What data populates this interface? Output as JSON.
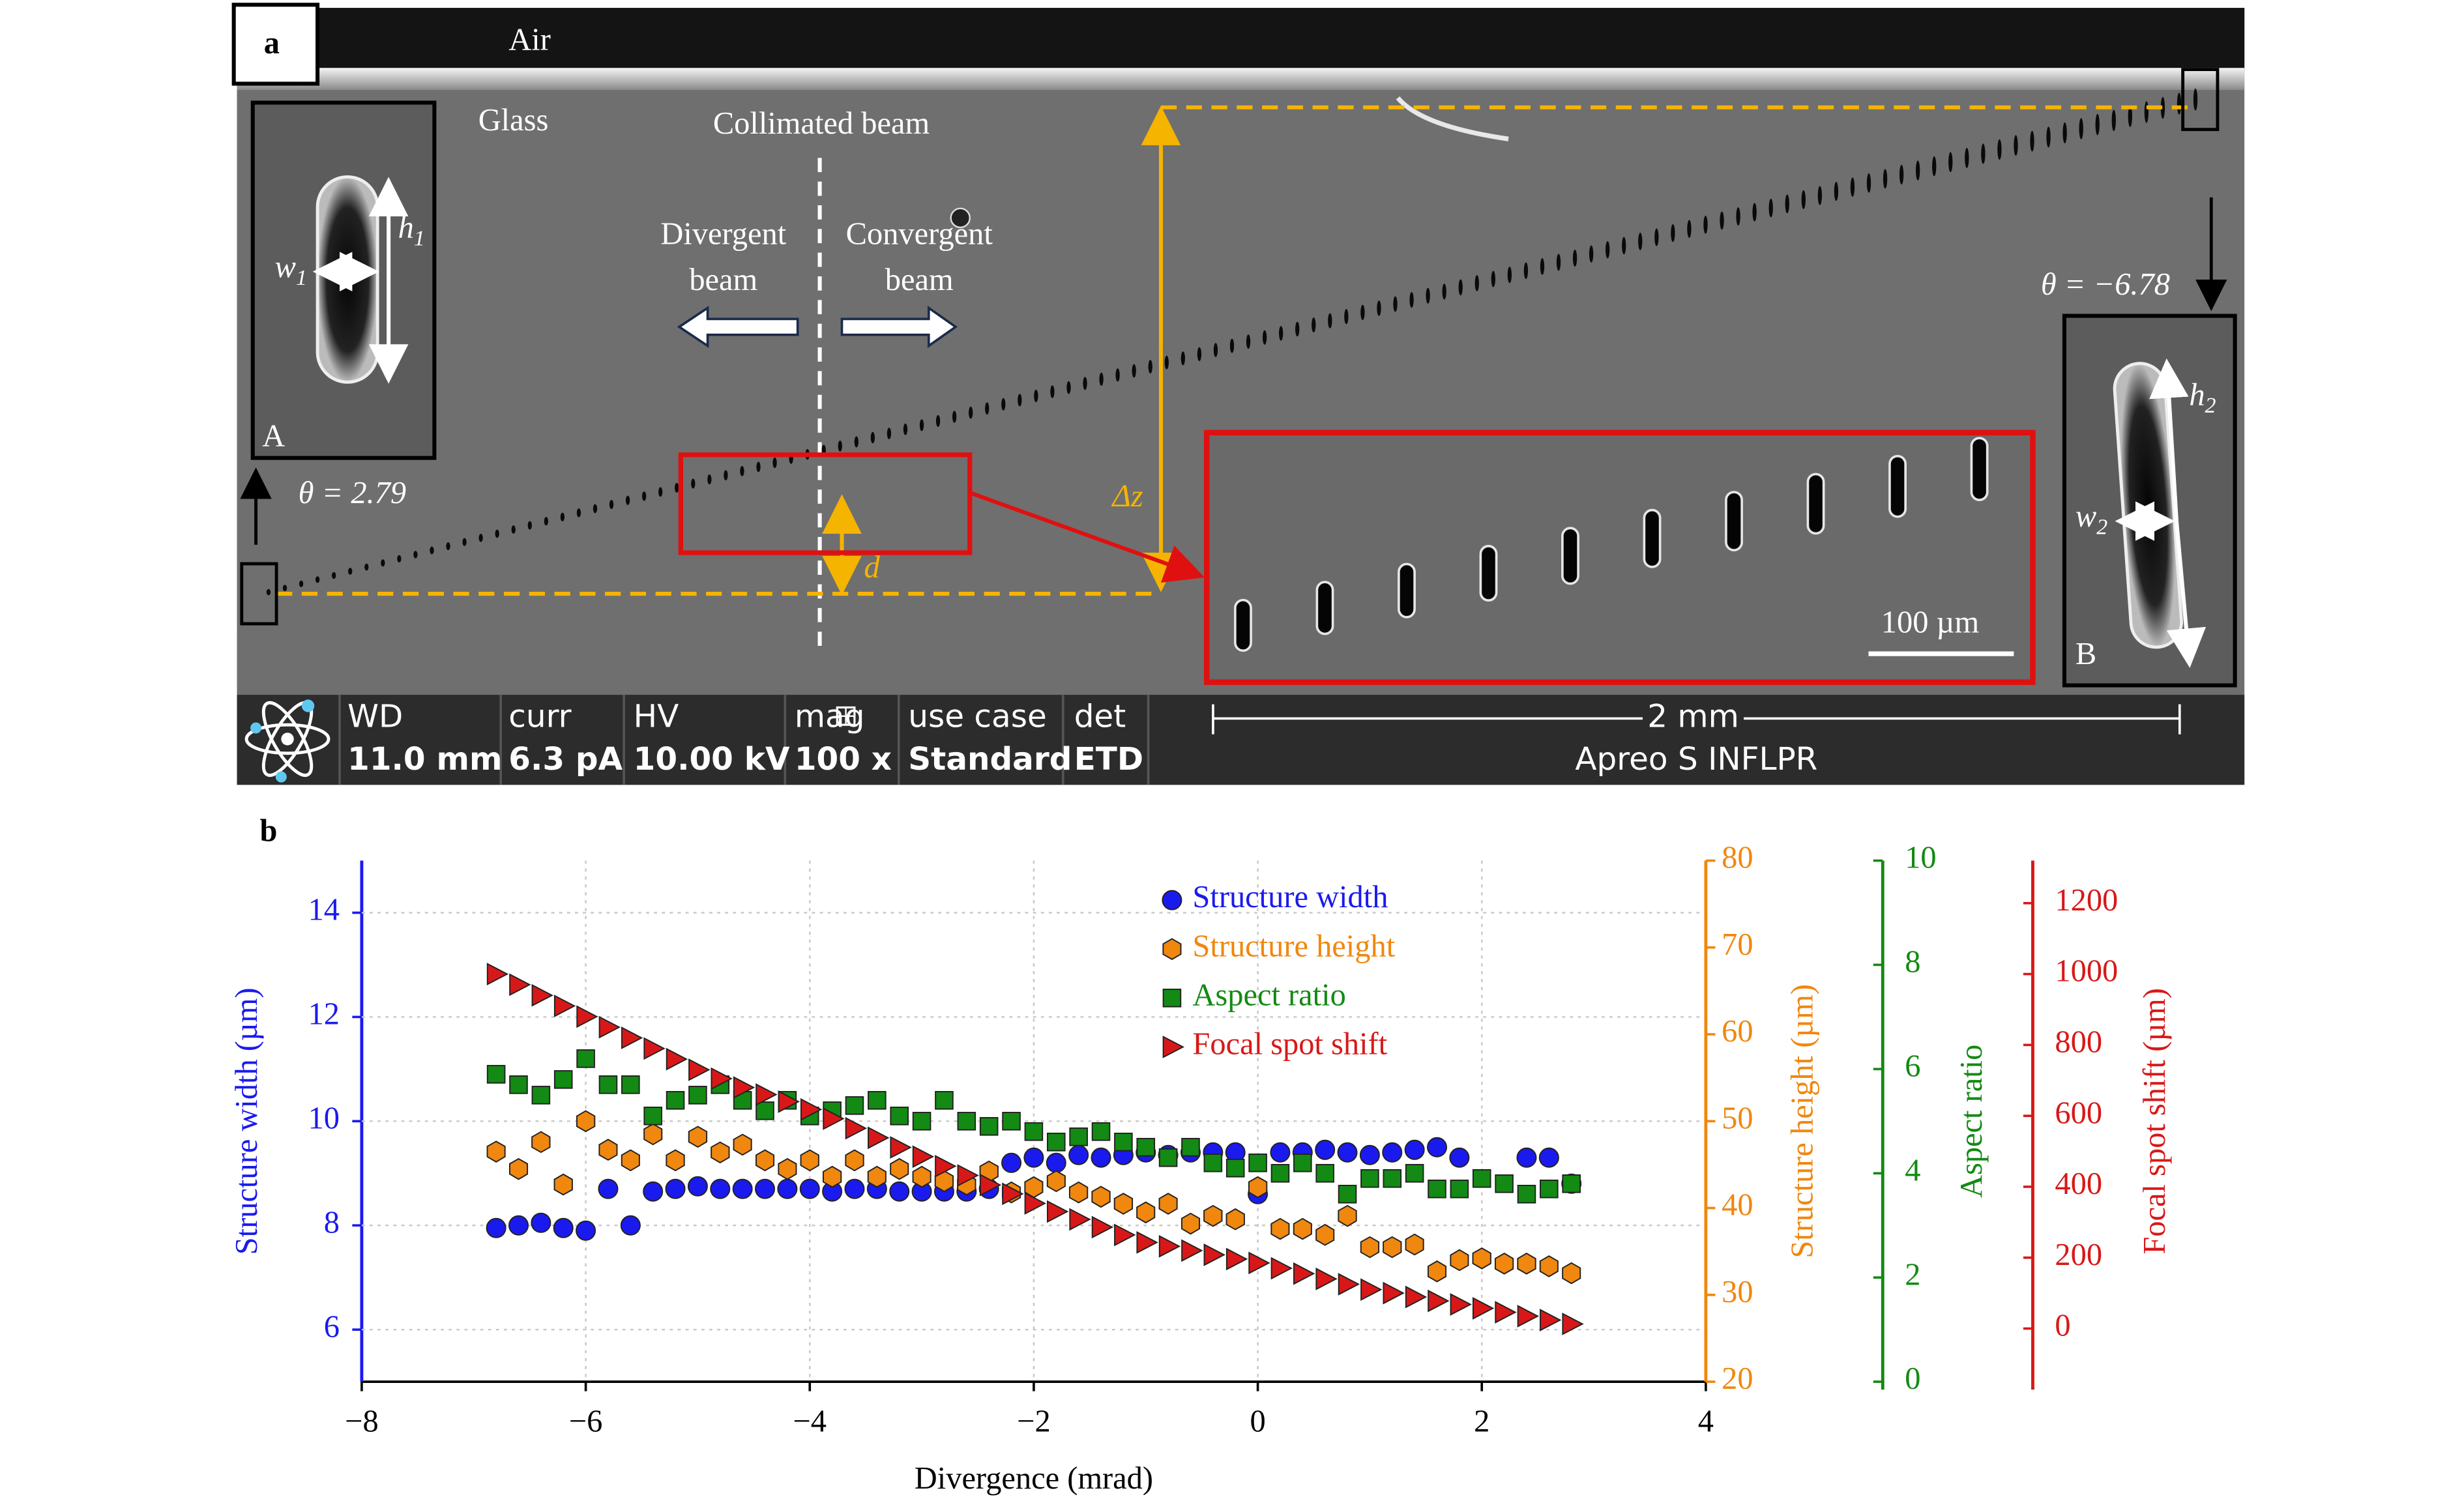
{
  "panel_a": {
    "label": "a",
    "air": "Air",
    "glass": "Glass",
    "collimated": "Collimated beam",
    "divergent": [
      "Divergent",
      "beam"
    ],
    "convergent": [
      "Convergent",
      "beam"
    ],
    "theta_left": "θ = 2.79",
    "theta_right": "θ = −6.78",
    "inset_a": "A",
    "inset_b": "B",
    "h1": {
      "text": "h",
      "sub": "1"
    },
    "w1": {
      "text": "w",
      "sub": "1"
    },
    "h2": {
      "text": "h",
      "sub": "2"
    },
    "w2": {
      "text": "w",
      "sub": "2"
    },
    "dz": "Δz",
    "d": "d",
    "scale_small": "100 µm",
    "scale_large": "2 mm",
    "status": [
      {
        "key": "WD",
        "value": "11.0 mm"
      },
      {
        "key": "curr",
        "value": "6.3 pA"
      },
      {
        "key": "HV",
        "value": "10.00 kV"
      },
      {
        "key": "mag",
        "value": "100 x"
      },
      {
        "key": "use case",
        "value": "Standard"
      },
      {
        "key": "det",
        "value": "ETD"
      }
    ],
    "instrument": "Apreo S INFLPR"
  },
  "chart_data": {
    "type": "scatter",
    "panel_label": "b",
    "xlabel": "Divergence (mrad)",
    "x": [
      -6.8,
      -6.6,
      -6.4,
      -6.2,
      -6,
      -5.8,
      -5.6,
      -5.4,
      -5.2,
      -5,
      -4.8,
      -4.6,
      -4.4,
      -4.2,
      -4,
      -3.8,
      -3.6,
      -3.4,
      -3.2,
      -3,
      -2.8,
      -2.6,
      -2.4,
      -2.2,
      -2,
      -1.8,
      -1.6,
      -1.4,
      -1.2,
      -1,
      -0.8,
      -0.6,
      -0.4,
      -0.2,
      0,
      0.2,
      0.4,
      0.6,
      0.8,
      1,
      1.2,
      1.4,
      1.6,
      1.8,
      2,
      2.2,
      2.4,
      2.6,
      2.8
    ],
    "xlim": [
      -8,
      4
    ],
    "xticks": [
      {
        "value": -8,
        "label": "−8"
      },
      {
        "value": -6,
        "label": "−6"
      },
      {
        "value": -4,
        "label": "−4"
      },
      {
        "value": -2,
        "label": "−2"
      },
      0,
      2,
      4
    ],
    "ylabel": "Structure width (µm)",
    "ylim": [
      5,
      15
    ],
    "yticks": [
      6,
      8,
      10,
      12,
      14
    ],
    "y2label": "Structure height (µm)",
    "y2lim": [
      20,
      80
    ],
    "y2ticks": [
      20,
      30,
      40,
      50,
      60,
      70,
      80
    ],
    "y3label": "Aspect ratio",
    "y3lim": [
      0,
      10
    ],
    "y3ticks": [
      0,
      2,
      4,
      6,
      8,
      10
    ],
    "y4label": "Focal spot shift (µm)",
    "y4lim": [
      -150,
      1320
    ],
    "y4ticks": [
      0,
      200,
      400,
      600,
      800,
      1000,
      1200
    ],
    "grid": true,
    "legend": "upper center",
    "series": [
      {
        "name": "Structure width",
        "color": "#1a1aee",
        "marker": "circle",
        "axis": "y",
        "values": [
          7.95,
          8.0,
          8.05,
          7.95,
          7.9,
          8.7,
          8.0,
          8.65,
          8.7,
          8.75,
          8.7,
          8.7,
          8.7,
          8.7,
          8.7,
          8.65,
          8.7,
          8.7,
          8.65,
          8.65,
          8.65,
          8.65,
          8.7,
          9.2,
          9.3,
          9.2,
          9.35,
          9.3,
          9.35,
          9.4,
          9.35,
          9.4,
          9.4,
          9.4,
          8.6,
          9.4,
          9.4,
          9.45,
          9.4,
          9.35,
          9.4,
          9.45,
          9.5,
          9.3,
          null,
          null,
          9.3,
          9.3,
          8.8
        ]
      },
      {
        "name": "Structure height",
        "color": "#f0870f",
        "marker": "hexagon",
        "axis": "y2",
        "values": [
          46.5,
          44.5,
          47.6,
          42.7,
          50.0,
          46.7,
          45.5,
          48.5,
          45.5,
          48.2,
          46.4,
          47.3,
          45.5,
          44.5,
          45.5,
          43.6,
          45.5,
          43.6,
          44.5,
          43.6,
          43.1,
          42.7,
          44.2,
          41.8,
          42.4,
          43.1,
          41.8,
          41.3,
          40.5,
          39.5,
          40.5,
          38.2,
          39.1,
          38.7,
          42.4,
          37.6,
          37.6,
          36.9,
          39.1,
          35.5,
          35.5,
          35.8,
          32.7,
          34.0,
          34.2,
          33.6,
          33.6,
          33.3,
          32.5
        ]
      },
      {
        "name": "Aspect ratio",
        "color": "#138a13",
        "marker": "square",
        "axis": "y3",
        "values": [
          5.9,
          5.7,
          5.5,
          5.8,
          6.2,
          5.7,
          5.7,
          5.1,
          5.4,
          5.5,
          5.7,
          5.4,
          5.2,
          5.4,
          5.1,
          5.2,
          5.3,
          5.4,
          5.1,
          5.0,
          5.4,
          5.0,
          4.9,
          5.0,
          4.8,
          4.6,
          4.7,
          4.8,
          4.6,
          4.5,
          4.3,
          4.5,
          4.2,
          4.1,
          4.2,
          4.0,
          4.2,
          4.0,
          3.6,
          3.9,
          3.9,
          4.0,
          3.7,
          3.7,
          3.9,
          3.8,
          3.6,
          3.7,
          3.8
        ]
      },
      {
        "name": "Focal spot shift",
        "color": "#d81818",
        "marker": "triangle-right",
        "axis": "y4",
        "values": [
          1000,
          970,
          940,
          910,
          880,
          850,
          820,
          790,
          760,
          730,
          705,
          680,
          660,
          640,
          618,
          592,
          565,
          538,
          511,
          485,
          458,
          432,
          405,
          380,
          353,
          330,
          308,
          286,
          264,
          243,
          232,
          220,
          208,
          196,
          185,
          170,
          155,
          140,
          125,
          110,
          100,
          89,
          78,
          68,
          57,
          46,
          35,
          24,
          13
        ]
      }
    ]
  }
}
